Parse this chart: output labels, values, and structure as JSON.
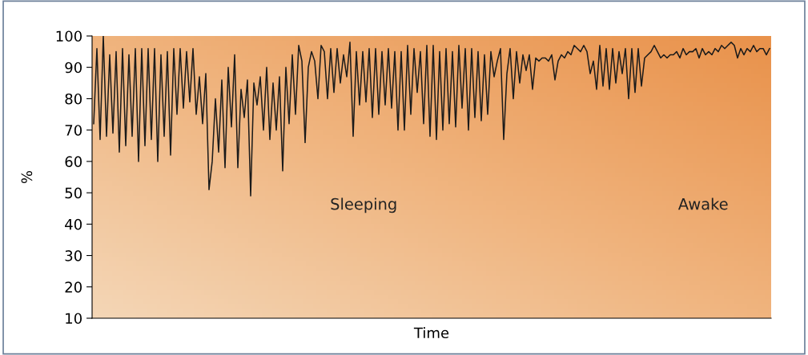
{
  "chart_data": {
    "type": "line",
    "xlabel": "Time",
    "ylabel": "%",
    "ylim": [
      10,
      100
    ],
    "yticks": [
      10,
      20,
      30,
      40,
      50,
      60,
      70,
      80,
      90,
      100
    ],
    "grid": false,
    "line_style": "solid",
    "marker": "none",
    "annotations": [
      "Sleeping",
      "Awake"
    ],
    "categories": [
      null,
      null,
      null,
      null,
      null,
      null,
      null,
      null,
      null,
      null,
      null,
      null,
      null,
      null,
      null,
      null,
      null,
      null,
      null,
      null,
      null,
      null,
      null,
      null,
      null,
      null,
      null,
      null,
      null,
      null,
      null,
      null,
      null,
      null,
      null,
      null,
      null,
      null,
      null,
      null,
      null,
      null,
      null,
      null,
      null,
      null,
      null,
      null,
      null,
      null,
      null,
      null,
      null,
      null,
      null,
      null,
      null,
      null,
      null,
      null,
      null,
      null,
      null,
      null,
      null,
      null,
      null,
      null,
      null,
      null,
      null,
      null,
      null,
      null,
      null,
      null,
      null,
      null,
      null,
      null,
      null,
      null,
      null,
      null,
      null,
      null,
      null,
      null,
      null,
      null,
      null,
      null,
      null,
      null,
      null,
      null,
      null,
      null,
      null,
      null,
      null,
      null,
      null,
      null,
      null,
      null,
      null,
      null,
      null,
      null,
      null,
      null,
      null,
      null,
      null,
      null,
      null,
      null,
      null,
      null,
      null,
      null,
      null,
      null,
      null,
      null,
      null,
      null,
      null,
      null,
      null,
      null,
      null,
      null,
      null,
      null,
      null,
      null,
      null,
      null,
      null,
      null,
      null,
      null,
      null,
      null,
      null,
      null,
      null,
      null,
      null,
      null,
      null,
      null,
      null,
      null,
      null,
      null,
      null,
      null,
      null,
      null,
      null,
      null,
      null,
      null,
      null,
      null,
      null,
      null,
      null,
      null,
      null,
      null,
      null,
      null,
      null,
      null,
      null,
      null,
      null,
      null,
      null,
      null,
      null,
      null,
      null,
      null,
      null,
      null,
      null,
      null,
      null,
      null,
      null,
      null,
      null,
      null,
      null,
      null,
      null,
      null,
      null,
      null,
      null,
      null,
      null,
      null,
      null,
      null,
      null,
      null
    ],
    "series": [
      {
        "color": "#1a1a1a",
        "values": [
          72,
          96,
          67,
          100,
          68,
          94,
          69,
          95,
          63,
          96,
          65,
          94,
          68,
          96,
          60,
          96,
          65,
          96,
          67,
          96,
          60,
          94,
          68,
          95,
          62,
          96,
          75,
          96,
          77,
          95,
          79,
          96,
          75,
          87,
          72,
          88,
          51,
          60,
          80,
          63,
          86,
          58,
          90,
          71,
          94,
          58,
          83,
          74,
          86,
          49,
          85,
          78,
          87,
          70,
          90,
          67,
          85,
          70,
          87,
          57,
          90,
          72,
          94,
          75,
          97,
          92,
          66,
          90,
          95,
          92,
          80,
          97,
          95,
          80,
          96,
          82,
          96,
          85,
          94,
          87,
          98,
          68,
          95,
          78,
          95,
          79,
          96,
          74,
          96,
          75,
          95,
          78,
          96,
          77,
          95,
          70,
          95,
          70,
          97,
          75,
          96,
          82,
          95,
          72,
          97,
          68,
          97,
          67,
          95,
          70,
          96,
          72,
          95,
          71,
          97,
          77,
          96,
          70,
          96,
          74,
          95,
          73,
          94,
          75,
          95,
          87,
          92,
          96,
          67,
          88,
          96,
          80,
          95,
          85,
          94,
          89,
          94,
          83,
          93,
          92,
          93,
          93,
          92,
          94,
          86,
          92,
          94,
          93,
          95,
          94,
          97,
          96,
          95,
          97,
          95,
          88,
          92,
          83,
          97,
          84,
          96,
          83,
          96,
          85,
          95,
          88,
          96,
          80,
          96,
          82,
          96,
          84,
          93,
          94,
          95,
          97,
          95,
          93,
          94,
          93,
          94,
          94,
          95,
          93,
          96,
          94,
          95,
          95,
          96,
          93,
          96,
          94,
          95,
          94,
          96,
          95,
          97,
          96,
          97,
          98,
          97,
          93,
          96,
          94,
          96,
          95,
          97,
          95,
          96,
          96,
          94,
          96
        ]
      }
    ]
  }
}
